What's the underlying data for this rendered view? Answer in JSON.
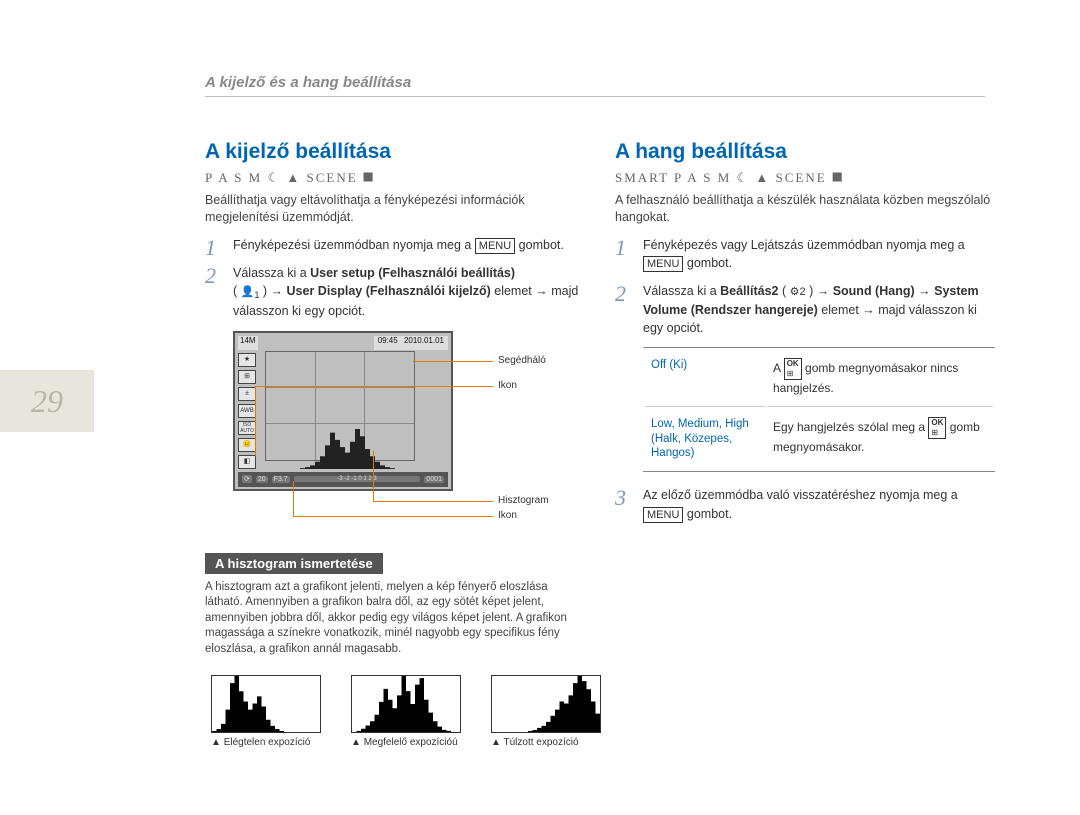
{
  "page_number": "29",
  "header": "A kijelző és a hang beállítása",
  "left": {
    "title": "A kijelző beállítása",
    "modeline": "P A S M ☾ ▲ SCENE ⯀",
    "intro": "Beállíthatja vagy eltávolíthatja a fényképezési információk megjelenítési üzemmódját.",
    "step1_pre": "Fényképezési üzemmódban nyomja meg a ",
    "step1_btn": "MENU",
    "step1_post": " gombot.",
    "step2_a": "Válassza ki a ",
    "step2_b": "User setup (Felhasználói beállítás)",
    "step2_c": "( ",
    "step2_c_icon_sub": "1",
    "step2_d": " ) → ",
    "step2_e": "User Display (Felhasználói kijelző)",
    "step2_f": " elemet → majd válasszon ki egy opciót.",
    "lcd": {
      "res": "14M",
      "time": "09:45",
      "date": "2010.01.01",
      "iso": "ISO AUTO",
      "bottom_shots": "20",
      "bottom_f": "F3.7",
      "bottom_exp": "-3 -2 -1 0 1 2 3",
      "bottom_count": "0001"
    },
    "callouts": {
      "grid": "Segédháló",
      "icon": "Ikon",
      "hist": "Hisztogram",
      "icon2": "Ikon"
    },
    "sub_heading": "A hisztogram ismertetése",
    "hist_text": "A hisztogram azt a grafikont jelenti, melyen a kép fényerő eloszlása látható. Amennyiben a grafikon balra dől, az egy sötét képet jelent, amennyiben jobbra dől, akkor pedig egy világos képet jelent. A grafikon magassága a színekre vonatkozik, minél nagyobb egy specifikus fény eloszlása, a grafikon annál magasabb.",
    "hist_labels": {
      "under": "Elégtelen expozíció",
      "ok": "Megfelelő expozícióú",
      "over": "Túlzott expozíció"
    }
  },
  "right": {
    "title": "A hang beállítása",
    "modeline": "SMART  P A S M ☾ ▲ SCENE ⯀",
    "intro": "A felhasználó beállíthatja a készülék használata közben megszólaló hangokat.",
    "step1_a": "Fényképezés vagy Lejátszás üzemmódban nyomja meg a ",
    "step1_btn": "MENU",
    "step1_b": " gombot.",
    "step2_a": "Válassza ki a ",
    "step2_b": "Beállítás2",
    "step2_c": "( ",
    "step2_c_icon_sub": "⚙2",
    "step2_d": " ) → ",
    "step2_e": "Sound (Hang)",
    "step2_f": " → ",
    "step2_g": "System Volume (Rendszer hangereje)",
    "step2_h": " elemet → majd válasszon ki egy opciót.",
    "opt1_key": "Off (Ki)",
    "opt1_val_a": "A ",
    "opt1_val_b": " gomb megnyomásakor nincs hangjelzés.",
    "opt2_key": "Low, Medium, High (Halk, Közepes, Hangos)",
    "opt2_val_a": "Egy hangjelzés szólal meg a ",
    "opt2_val_b": " gomb megnyomásakor.",
    "step3_a": "Az előző üzemmódba való visszatéréshez nyomja meg a ",
    "step3_btn": "MENU",
    "step3_b": " gombot."
  },
  "histograms": {
    "under": {
      "bars": [
        1,
        3,
        8,
        22,
        48,
        55,
        40,
        30,
        22,
        28,
        35,
        25,
        12,
        6,
        3,
        1,
        0,
        0,
        0,
        0,
        0,
        0,
        0,
        0
      ],
      "color": "#000"
    },
    "ok": {
      "bars": [
        0,
        1,
        3,
        6,
        10,
        16,
        28,
        40,
        30,
        22,
        34,
        52,
        38,
        26,
        44,
        50,
        30,
        18,
        10,
        5,
        2,
        1,
        0,
        0
      ],
      "color": "#000"
    },
    "over": {
      "bars": [
        0,
        0,
        0,
        0,
        0,
        0,
        0,
        0,
        1,
        2,
        4,
        6,
        10,
        16,
        22,
        30,
        28,
        36,
        48,
        55,
        50,
        42,
        30,
        18
      ],
      "color": "#000"
    },
    "lcd": {
      "bars": [
        0,
        1,
        2,
        4,
        8,
        14,
        26,
        40,
        32,
        24,
        18,
        30,
        44,
        36,
        22,
        14,
        8,
        4,
        2,
        1,
        0,
        0,
        0,
        0
      ],
      "color": "#222"
    }
  }
}
